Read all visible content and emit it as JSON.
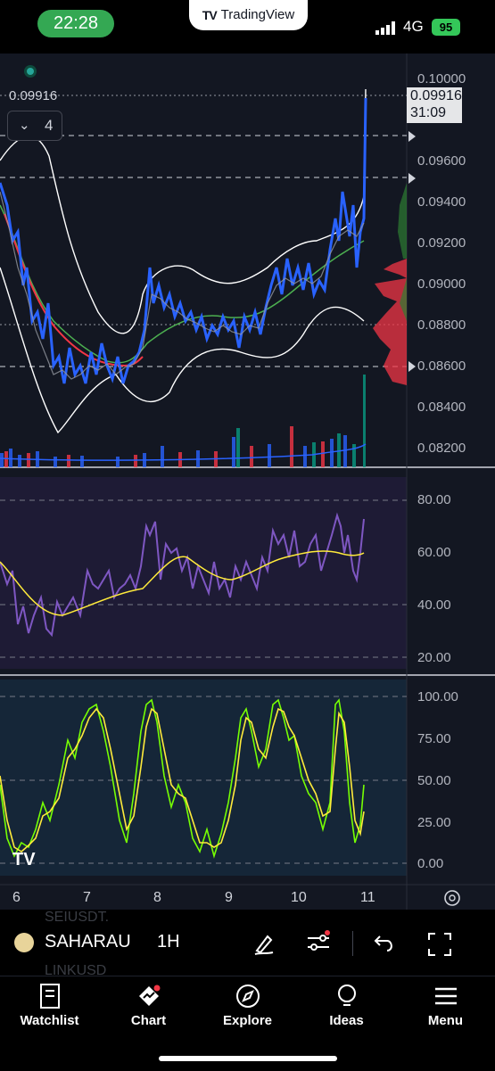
{
  "status_bar": {
    "time": "22:28",
    "app_badge": "TradingView",
    "network": "4G",
    "battery": "95"
  },
  "chart": {
    "last_price": "0.09916",
    "countdown": "31:09",
    "indicators_collapsed_count": "4",
    "price_axis": [
      "0.10000",
      "0.09600",
      "0.09400",
      "0.09200",
      "0.09000",
      "0.08800",
      "0.08600",
      "0.08400",
      "0.08200"
    ],
    "rsi_axis": [
      "80.00",
      "60.00",
      "40.00",
      "20.00"
    ],
    "stoch_axis": [
      "100.00",
      "75.00",
      "50.00",
      "25.00",
      "0.00"
    ],
    "time_axis": [
      "6",
      "7",
      "8",
      "9",
      "10",
      "11"
    ],
    "colors": {
      "up": "#2962ff",
      "down": "#787b86",
      "bb": "#ffffff",
      "ema_fast": "#4caf50",
      "ema_slow": "#f23645",
      "rsi": "#7e57c2",
      "rsi_ma": "#ffeb3b",
      "stoch_k": "#76ff03",
      "stoch_d": "#ffeb3b"
    }
  },
  "toolbar": {
    "symbol": "SAHARAU",
    "interval": "1H",
    "ghost_1": "SEIUSDT.",
    "ghost_2": "LINKUSD"
  },
  "tabs": [
    {
      "label": "Watchlist",
      "icon": "watchlist-icon"
    },
    {
      "label": "Chart",
      "icon": "chart-icon"
    },
    {
      "label": "Explore",
      "icon": "compass-icon"
    },
    {
      "label": "Ideas",
      "icon": "lightbulb-icon"
    },
    {
      "label": "Menu",
      "icon": "hamburger-icon"
    }
  ]
}
